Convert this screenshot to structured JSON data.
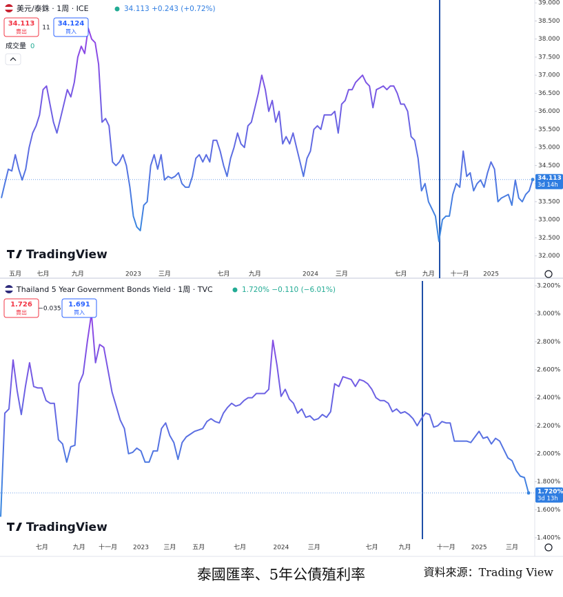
{
  "chart_data": [
    {
      "type": "line",
      "title": "美元/泰銖 · 1周 · ICE",
      "quote": "34.113 +0.243 (+0.72%)",
      "sell": {
        "price": "34.113",
        "label": "賣出"
      },
      "spread": "11",
      "buy": {
        "price": "34.124",
        "label": "買入"
      },
      "volume_label": "成交量",
      "volume": "0",
      "watermark": "TradingView",
      "last_label": "34.113",
      "countdown": "3d 14h",
      "line_colors": [
        "#9b3de6",
        "#3b86e0"
      ],
      "categories": [
        null,
        null,
        null,
        null,
        "五月",
        null,
        null,
        null,
        null,
        null,
        null,
        null,
        "七月",
        null,
        null,
        null,
        null,
        null,
        null,
        null,
        null,
        null,
        "九月",
        null,
        null,
        null,
        null,
        null,
        null,
        null,
        null,
        null,
        null,
        null,
        null,
        null,
        null,
        null,
        "2023",
        null,
        null,
        null,
        null,
        null,
        null,
        null,
        null,
        "三月",
        null,
        null,
        null,
        null,
        null,
        null,
        null,
        null,
        null,
        null,
        null,
        null,
        null,
        null,
        null,
        null,
        "七月",
        null,
        null,
        null,
        null,
        null,
        null,
        null,
        null,
        "九月",
        null,
        null,
        null,
        null,
        null,
        null,
        null,
        null,
        null,
        null,
        null,
        null,
        null,
        null,
        null,
        "2024",
        null,
        null,
        null,
        null,
        null,
        null,
        null,
        null,
        "三月",
        null,
        null,
        null,
        null,
        null,
        null,
        null,
        null,
        null,
        null,
        null,
        null,
        null,
        null,
        null,
        null,
        "七月",
        null,
        null,
        null,
        null,
        null,
        null,
        null,
        "九月",
        null,
        null,
        null,
        null,
        null,
        null,
        null,
        null,
        "十一月",
        null,
        null,
        null,
        null,
        null,
        null,
        null,
        null,
        "2025",
        null,
        null,
        null,
        null,
        null,
        null,
        null,
        null,
        null,
        null,
        null,
        null
      ],
      "values": [
        33.6,
        34.0,
        34.4,
        34.35,
        34.8,
        34.4,
        34.1,
        34.4,
        35.0,
        35.4,
        35.6,
        35.9,
        36.6,
        36.7,
        36.2,
        35.7,
        35.4,
        35.8,
        36.2,
        36.6,
        36.4,
        36.8,
        37.5,
        37.8,
        37.6,
        38.3,
        38.0,
        37.9,
        37.3,
        35.7,
        35.8,
        35.6,
        34.6,
        34.5,
        34.6,
        34.8,
        34.5,
        33.9,
        33.1,
        32.8,
        32.7,
        33.4,
        33.5,
        34.5,
        34.8,
        34.4,
        34.8,
        34.1,
        34.2,
        34.15,
        34.2,
        34.3,
        34.0,
        33.9,
        33.9,
        34.2,
        34.7,
        34.8,
        34.6,
        34.8,
        34.6,
        35.2,
        35.2,
        34.9,
        34.5,
        34.2,
        34.7,
        35.0,
        35.4,
        35.1,
        35.0,
        35.6,
        35.7,
        36.1,
        36.5,
        37.0,
        36.6,
        36.0,
        36.3,
        35.7,
        36.0,
        35.1,
        35.3,
        35.1,
        35.4,
        35.0,
        34.6,
        34.2,
        34.7,
        34.9,
        35.5,
        35.6,
        35.5,
        35.9,
        35.9,
        35.9,
        36.0,
        35.4,
        36.2,
        36.3,
        36.6,
        36.6,
        36.8,
        36.9,
        37.0,
        36.8,
        36.7,
        36.1,
        36.6,
        36.65,
        36.7,
        36.6,
        36.7,
        36.7,
        36.5,
        36.2,
        36.2,
        36.0,
        35.3,
        35.2,
        34.7,
        33.8,
        34.0,
        33.5,
        33.3,
        33.1,
        32.4,
        33.0,
        33.1,
        33.1,
        33.7,
        34.0,
        33.9,
        34.9,
        34.2,
        34.3,
        33.8,
        34.0,
        34.1,
        33.9,
        34.3,
        34.6,
        34.4,
        33.5,
        33.6,
        33.65,
        33.7,
        33.4,
        34.1,
        33.6,
        33.5,
        33.7,
        33.8,
        34.113
      ],
      "ylim": [
        31.65,
        39.08
      ],
      "yticks": [
        {
          "value": 32,
          "label": "32.000"
        },
        {
          "value": 32.5,
          "label": "32.500"
        },
        {
          "value": 33,
          "label": "33.000"
        },
        {
          "value": 33.5,
          "label": "33.500"
        },
        {
          "value": 34,
          "label": "34.000"
        },
        {
          "value": 34.5,
          "label": "34.500"
        },
        {
          "value": 35,
          "label": "35.000"
        },
        {
          "value": 35.5,
          "label": "35.500"
        },
        {
          "value": 36,
          "label": "36.000"
        },
        {
          "value": 36.5,
          "label": "36.500"
        },
        {
          "value": 37,
          "label": "37.000"
        },
        {
          "value": 37.5,
          "label": "37.500"
        },
        {
          "value": 38,
          "label": "38.000"
        },
        {
          "value": 38.5,
          "label": "38.500"
        },
        {
          "value": 39,
          "label": "39.000"
        }
      ],
      "grid": false
    },
    {
      "type": "line",
      "title": "Thailand 5 Year Government Bonds Yield · 1周 · TVC",
      "quote": "1.720% −0.110 (−6.01%)",
      "sell": {
        "price": "1.726",
        "label": "賣出"
      },
      "spread": "−0.035",
      "buy": {
        "price": "1.691",
        "label": "買入"
      },
      "watermark": "TradingView",
      "last_label": "1.720%",
      "countdown": "3d 13h",
      "line_colors": [
        "#9b3de6",
        "#3b86e0"
      ],
      "categories": [
        null,
        null,
        null,
        null,
        null,
        null,
        null,
        null,
        null,
        null,
        "七月",
        null,
        null,
        null,
        null,
        null,
        null,
        null,
        null,
        "九月",
        null,
        null,
        null,
        null,
        null,
        null,
        "十一月",
        null,
        null,
        null,
        null,
        null,
        null,
        null,
        "2023",
        null,
        null,
        null,
        null,
        null,
        null,
        "三月",
        null,
        null,
        null,
        null,
        null,
        null,
        "五月",
        null,
        null,
        null,
        null,
        null,
        null,
        null,
        null,
        null,
        "七月",
        null,
        null,
        null,
        null,
        null,
        null,
        null,
        null,
        null,
        "2024",
        null,
        null,
        null,
        null,
        null,
        null,
        null,
        "三月",
        null,
        null,
        null,
        null,
        null,
        null,
        null,
        null,
        null,
        null,
        null,
        null,
        null,
        "七月",
        null,
        null,
        null,
        null,
        null,
        null,
        null,
        "九月",
        null,
        null,
        null,
        null,
        null,
        null,
        null,
        null,
        null,
        "十一月",
        null,
        null,
        null,
        null,
        null,
        null,
        null,
        "2025",
        null,
        null,
        null,
        null,
        null,
        null,
        null,
        "三月",
        null,
        null,
        null,
        null
      ],
      "values": [
        1.55,
        2.29,
        2.32,
        2.67,
        2.45,
        2.28,
        2.48,
        2.65,
        2.48,
        2.47,
        2.47,
        2.38,
        2.36,
        2.36,
        2.1,
        2.07,
        1.94,
        2.05,
        2.06,
        2.5,
        2.57,
        2.8,
        3.0,
        2.65,
        2.78,
        2.76,
        2.6,
        2.44,
        2.34,
        2.24,
        2.18,
        2.0,
        2.01,
        2.04,
        2.02,
        1.94,
        1.94,
        2.02,
        2.02,
        2.18,
        2.22,
        2.13,
        2.08,
        1.96,
        2.08,
        2.12,
        2.14,
        2.16,
        2.17,
        2.18,
        2.23,
        2.25,
        2.23,
        2.22,
        2.29,
        2.33,
        2.36,
        2.34,
        2.35,
        2.38,
        2.4,
        2.4,
        2.43,
        2.43,
        2.43,
        2.46,
        2.81,
        2.63,
        2.41,
        2.46,
        2.39,
        2.36,
        2.29,
        2.32,
        2.26,
        2.27,
        2.24,
        2.25,
        2.28,
        2.26,
        2.3,
        2.5,
        2.48,
        2.55,
        2.54,
        2.53,
        2.48,
        2.53,
        2.52,
        2.5,
        2.46,
        2.4,
        2.38,
        2.38,
        2.36,
        2.3,
        2.32,
        2.29,
        2.3,
        2.28,
        2.25,
        2.2,
        2.25,
        2.29,
        2.28,
        2.19,
        2.2,
        2.23,
        2.22,
        2.22,
        2.09,
        2.09,
        2.09,
        2.09,
        2.08,
        2.12,
        2.16,
        2.11,
        2.12,
        2.07,
        2.11,
        2.09,
        2.03,
        1.97,
        1.95,
        1.88,
        1.84,
        1.83,
        1.72
      ],
      "ylim": [
        1.38,
        3.234
      ],
      "yticks": [
        {
          "value": 1.4,
          "label": "1.400%"
        },
        {
          "value": 1.6,
          "label": "1.600%"
        },
        {
          "value": 1.8,
          "label": "1.800%"
        },
        {
          "value": 2.0,
          "label": "2.000%"
        },
        {
          "value": 2.2,
          "label": "2.200%"
        },
        {
          "value": 2.4,
          "label": "2.400%"
        },
        {
          "value": 2.6,
          "label": "2.600%"
        },
        {
          "value": 2.8,
          "label": "2.800%"
        },
        {
          "value": 3.0,
          "label": "3.000%"
        },
        {
          "value": 3.2,
          "label": "3.200%"
        }
      ],
      "grid": false
    }
  ],
  "caption": "泰國匯率、5年公債殖利率",
  "source": "資料來源：Trading View"
}
